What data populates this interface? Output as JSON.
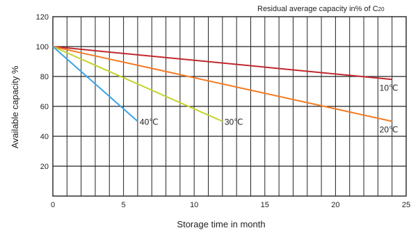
{
  "chart_data": {
    "type": "line",
    "title_main": "Residual average capacity in% of C",
    "title_sub": "20",
    "xlabel": "Storage time in month",
    "ylabel": "Available capacity %",
    "xlim": [
      0,
      25
    ],
    "ylim": [
      0,
      120
    ],
    "x_ticks": [
      0,
      5,
      10,
      15,
      20,
      25
    ],
    "y_ticks": [
      20,
      40,
      60,
      80,
      100,
      120
    ],
    "grid": true,
    "series": [
      {
        "name": "10℃",
        "color": "#c0282c",
        "x": [
          0,
          24
        ],
        "y": [
          100,
          78
        ]
      },
      {
        "name": "20℃",
        "color": "#f47a22",
        "x": [
          0,
          24
        ],
        "y": [
          100,
          50
        ]
      },
      {
        "name": "30℃",
        "color": "#c4d22a",
        "x": [
          0,
          12
        ],
        "y": [
          100,
          50
        ]
      },
      {
        "name": "40℃",
        "color": "#3ba3e6",
        "x": [
          0,
          6
        ],
        "y": [
          100,
          50
        ]
      }
    ]
  }
}
